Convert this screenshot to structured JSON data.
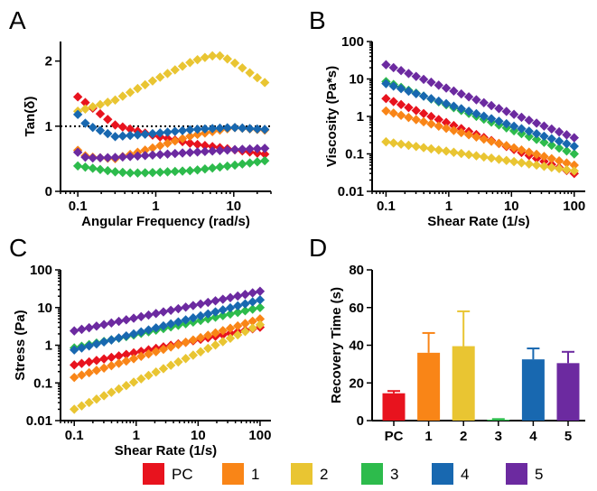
{
  "colors": {
    "PC": "#e8131e",
    "1": "#f98517",
    "2": "#e9c532",
    "3": "#2dbb4c",
    "4": "#1868b0",
    "5": "#6c2aa0"
  },
  "series_names": [
    "PC",
    "1",
    "2",
    "3",
    "4",
    "5"
  ],
  "chart_data": [
    {
      "panel": "A",
      "type": "scatter",
      "xlabel": "Angular Frequency (rad/s)",
      "ylabel": "Tan(δ)",
      "xscale": "log",
      "xlim": [
        0.06,
        30
      ],
      "ylim": [
        0,
        2.3
      ],
      "xticks": [
        0.1,
        1,
        10
      ],
      "xticklabels": [
        "0.1",
        "1",
        "10"
      ],
      "yticks": [
        0,
        1,
        2
      ],
      "yticklabels": [
        "0",
        "1",
        "2"
      ],
      "reference_line": {
        "y": 1,
        "style": "dotted"
      },
      "series": [
        {
          "name": "PC",
          "points": [
            [
              0.1,
              1.45
            ],
            [
              0.3,
              1.02
            ],
            [
              1,
              0.85
            ],
            [
              3,
              0.73
            ],
            [
              10,
              0.64
            ],
            [
              25,
              0.57
            ]
          ]
        },
        {
          "name": "1",
          "points": [
            [
              0.1,
              0.63
            ],
            [
              0.13,
              0.53
            ],
            [
              0.3,
              0.5
            ],
            [
              1,
              0.68
            ],
            [
              3,
              0.86
            ],
            [
              10,
              0.98
            ],
            [
              25,
              0.94
            ]
          ]
        },
        {
          "name": "2",
          "points": [
            [
              0.1,
              1.23
            ],
            [
              0.3,
              1.4
            ],
            [
              1,
              1.72
            ],
            [
              3,
              2.0
            ],
            [
              5,
              2.08
            ],
            [
              7,
              2.08
            ],
            [
              10,
              1.98
            ],
            [
              25,
              1.67
            ]
          ]
        },
        {
          "name": "3",
          "points": [
            [
              0.1,
              0.39
            ],
            [
              0.3,
              0.3
            ],
            [
              0.5,
              0.28
            ],
            [
              1,
              0.29
            ],
            [
              3,
              0.32
            ],
            [
              10,
              0.4
            ],
            [
              25,
              0.47
            ]
          ]
        },
        {
          "name": "4",
          "points": [
            [
              0.1,
              1.18
            ],
            [
              0.13,
              1.02
            ],
            [
              0.3,
              0.84
            ],
            [
              1,
              0.89
            ],
            [
              3,
              0.95
            ],
            [
              10,
              0.98
            ],
            [
              25,
              0.95
            ]
          ]
        },
        {
          "name": "5",
          "points": [
            [
              0.1,
              0.6
            ],
            [
              0.13,
              0.51
            ],
            [
              0.3,
              0.52
            ],
            [
              1,
              0.56
            ],
            [
              3,
              0.6
            ],
            [
              10,
              0.64
            ],
            [
              25,
              0.66
            ]
          ]
        }
      ]
    },
    {
      "panel": "B",
      "type": "scatter",
      "xlabel": "Shear Rate (1/s)",
      "ylabel": "Viscosity (Pa*s)",
      "xscale": "log",
      "yscale": "log",
      "xlim": [
        0.06,
        150
      ],
      "ylim": [
        0.01,
        100
      ],
      "xticks": [
        0.1,
        1,
        10,
        100
      ],
      "xticklabels": [
        "0.1",
        "1",
        "10",
        "100"
      ],
      "yticks": [
        0.01,
        0.1,
        1,
        10,
        100
      ],
      "yticklabels": [
        "0.01",
        "0.1",
        "1",
        "10",
        "100"
      ],
      "series": [
        {
          "name": "PC",
          "points": [
            [
              0.1,
              3
            ],
            [
              100,
              0.03
            ]
          ]
        },
        {
          "name": "1",
          "points": [
            [
              0.1,
              1.4
            ],
            [
              100,
              0.05
            ]
          ]
        },
        {
          "name": "2",
          "points": [
            [
              0.1,
              0.21
            ],
            [
              100,
              0.035
            ]
          ]
        },
        {
          "name": "3",
          "points": [
            [
              0.1,
              8.5
            ],
            [
              100,
              0.1
            ]
          ]
        },
        {
          "name": "4",
          "points": [
            [
              0.1,
              7.5
            ],
            [
              100,
              0.16
            ]
          ]
        },
        {
          "name": "5",
          "points": [
            [
              0.1,
              24
            ],
            [
              100,
              0.27
            ]
          ]
        }
      ]
    },
    {
      "panel": "C",
      "type": "scatter",
      "xlabel": "Shear Rate (1/s)",
      "ylabel": "Stress (Pa)",
      "xscale": "log",
      "yscale": "log",
      "xlim": [
        0.06,
        150
      ],
      "ylim": [
        0.01,
        100
      ],
      "xticks": [
        0.1,
        1,
        10,
        100
      ],
      "xticklabels": [
        "0.1",
        "1",
        "10",
        "100"
      ],
      "yticks": [
        0.01,
        0.1,
        1,
        10,
        100
      ],
      "yticklabels": [
        "0.01",
        "0.1",
        "1",
        "10",
        "100"
      ],
      "series": [
        {
          "name": "PC",
          "points": [
            [
              0.1,
              0.3
            ],
            [
              100,
              3
            ]
          ]
        },
        {
          "name": "1",
          "points": [
            [
              0.1,
              0.14
            ],
            [
              100,
              5
            ]
          ]
        },
        {
          "name": "2",
          "points": [
            [
              0.1,
              0.02
            ],
            [
              100,
              3.5
            ]
          ]
        },
        {
          "name": "3",
          "points": [
            [
              0.1,
              0.85
            ],
            [
              100,
              10
            ]
          ]
        },
        {
          "name": "4",
          "points": [
            [
              0.1,
              0.75
            ],
            [
              100,
              16
            ]
          ]
        },
        {
          "name": "5",
          "points": [
            [
              0.1,
              2.4
            ],
            [
              100,
              27
            ]
          ]
        }
      ]
    },
    {
      "panel": "D",
      "type": "bar",
      "ylabel": "Recovery Time (s)",
      "ylim": [
        0,
        80
      ],
      "yticks": [
        0,
        20,
        40,
        60,
        80
      ],
      "yticklabels": [
        "0",
        "20",
        "40",
        "60",
        "80"
      ],
      "categories": [
        "PC",
        "1",
        "2",
        "3",
        "4",
        "5"
      ],
      "values": [
        14.5,
        36,
        39.5,
        0.5,
        32.5,
        30.5
      ],
      "errors": [
        1.2,
        10.5,
        18.5,
        0.3,
        5.8,
        6
      ]
    }
  ]
}
